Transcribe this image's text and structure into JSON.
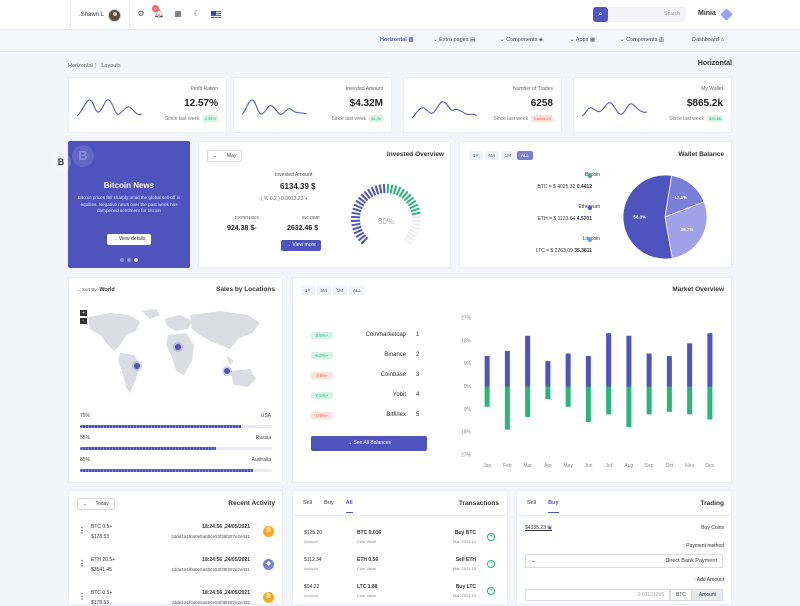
{
  "topbar": {
    "user": ".Shawn L",
    "notifications": "5",
    "search_placeholder": "Search",
    "brand": "Minia"
  },
  "nav": [
    "Horizontal",
    "Extra pages",
    "Components",
    "Apps",
    "Components",
    "Dashboard"
  ],
  "breadcrumb": {
    "parent": "Horizontal",
    "sep": "〉",
    "current": "Layouts"
  },
  "page_title": "Horizontal",
  "stats": [
    {
      "label": "Profit Ration",
      "value": "12.57%",
      "sub": "Since last week",
      "pill": "2.95%",
      "pill_color": "g"
    },
    {
      "label": "Invested Amount",
      "value": "$4.32M",
      "sub": "Since last week",
      "pill": "$1.2k",
      "pill_color": "g"
    },
    {
      "label": "Number of Trades",
      "value": "6258",
      "sub": "Since last week",
      "pill": "Trades 29",
      "pill_color": "r"
    },
    {
      "label": "My Wallet",
      "value": "$865.2k",
      "sub": "Since last week",
      "pill": "$35.8k",
      "pill_color": "g"
    }
  ],
  "btc_news": {
    "bg_letter": "B",
    "icon": "B",
    "title": "Bitcoin News",
    "body": "Bitcoin prices fell sharply amid the global sell-off in equities. Negative news over the past week has dampened sentiment for bitcoin",
    "button": "View details"
  },
  "invested": {
    "title": "Invested Overview",
    "month": "May",
    "label": "Invested Amount",
    "value": "6134.39 $",
    "change": "( % 0.2 ) 0.0012.23 +",
    "expenses_label": "EXPENSES",
    "expenses": "924.38 $-",
    "income_label": "INCOME",
    "income": "2632.46 $",
    "button": "View more",
    "gauge": "80%",
    "gauge_value": 0.8
  },
  "wallet": {
    "title": "Wallet Balance",
    "tabs": [
      "1Y",
      "6M",
      "1M",
      "ALL"
    ],
    "coins": [
      {
        "name": "Bitcoin",
        "line": "BTC = $ 4025.32 ",
        "amount": "0.4412",
        "color": "#2ab57d"
      },
      {
        "name": "Ethereum",
        "line": "ETH = $ 1123.64 ",
        "amount": "4.5701",
        "color": "#4e53bd"
      },
      {
        "name": "Litecoin",
        "line": "LTC = $ 2263.09 ",
        "amount": "35.3811",
        "color": "#4ba6ef"
      }
    ],
    "pie": [
      {
        "label": "17.5%",
        "value": 17.5,
        "color": "#7a7fd8"
      },
      {
        "label": "29.7%",
        "value": 29.7,
        "color": "#9ea2e6"
      },
      {
        "label": "58.3%",
        "value": 58.3,
        "color": "#4e53bd"
      }
    ]
  },
  "sales": {
    "title": "Sales by Locations",
    "sort_label": "Sort By:",
    "sort_value": "World",
    "rows": [
      {
        "pct": "75%",
        "country": "USA",
        "value": 75
      },
      {
        "pct": "55%",
        "country": "Russia",
        "value": 55
      },
      {
        "pct": "85%",
        "country": "Australia",
        "value": 85
      }
    ]
  },
  "market": {
    "title": "Market Overview",
    "tabs": [
      "1Y",
      "6M",
      "1M",
      "ALL"
    ],
    "button": "See All Balances",
    "list": [
      {
        "pill": "2.5%+",
        "color": "g",
        "name": "Coinmarketcap",
        "rank": "1"
      },
      {
        "pill": "8.3%+",
        "color": "g",
        "name": "Binance",
        "rank": "2"
      },
      {
        "pill": "3.6%-",
        "color": "r",
        "name": "Coinbase",
        "rank": "3"
      },
      {
        "pill": "7.5%+",
        "color": "g",
        "name": "Yobit",
        "rank": "4"
      },
      {
        "pill": "0.9%-",
        "color": "r",
        "name": "Bitfinex",
        "rank": "5"
      }
    ]
  },
  "chart_data": {
    "type": "bar",
    "stacked": true,
    "categories": [
      "Jan",
      "Feb",
      "Mar",
      "Apr",
      "May",
      "Jun",
      "Jul",
      "Aug",
      "Sep",
      "Oct",
      "Nov",
      "Dec"
    ],
    "yticks": [
      "27%",
      "18%",
      "9%",
      "0%",
      "9%",
      "18%",
      "27%"
    ],
    "ylim": [
      -27,
      27
    ],
    "series": [
      {
        "values": [
          12,
          14,
          20,
          10,
          13,
          12,
          21,
          20,
          13,
          12,
          17,
          21
        ],
        "color": "#4e53bd"
      },
      {
        "values": [
          -8,
          -17,
          -12,
          -5,
          -8,
          -14,
          -11,
          -16,
          -11,
          -10,
          -11,
          -13
        ],
        "color": "#2ab57d"
      }
    ]
  },
  "activity": {
    "title": "Recent Activity",
    "filter": "Today",
    "rows": [
      {
        "coin": "BTC 0.5+",
        "usd": "$178.53",
        "time": "18:24:56 ,24/05/2021",
        "hash": "2dda1a1f0a0e5a6bce53f38f287e2e431",
        "icon": "B",
        "color": "#f6a929"
      },
      {
        "coin": "ETH 20.5+",
        "usd": "$3541.45",
        "time": "18:24:56 ,24/05/2021",
        "hash": "2dda1a1f0a0e5a6bce53f38f287e2e431",
        "icon": "◆",
        "color": "#7a7fd8"
      },
      {
        "coin": "BTC 0.5+",
        "usd": "$178.53",
        "time": "18:24:56 ,24/05/2021",
        "hash": "2dda1a1f0a0e5a6bce53f38f287e2e431",
        "icon": "B",
        "color": "#f6a929"
      }
    ]
  },
  "transactions": {
    "title": "Transactions",
    "tabs": [
      "Sell",
      "Buy",
      "All"
    ],
    "rows": [
      {
        "amount": "$125.20",
        "amount_label": "Amount",
        "coin": "BTC 0.016",
        "coin_label": "Coin Value",
        "action": "Buy BTC",
        "date": "Mai, 2021 14"
      },
      {
        "amount": "$112.34",
        "amount_label": "Amount",
        "coin": "ETH 0.56",
        "coin_label": "Coin Value",
        "action": "Sell ETH",
        "date": "Mai, 2021 15"
      },
      {
        "amount": "$94.22",
        "amount_label": "Amount",
        "coin": "LTC 1.88",
        "coin_label": "Coin Value",
        "action": "Buy LTC",
        "date": "Mai, 2021 16"
      }
    ]
  },
  "trading": {
    "title": "Trading",
    "tabs": [
      "Sell",
      "Buy"
    ],
    "balance": "$4335.23",
    "coins_label": "Buy Coins",
    "payment_label": ": Payment method",
    "payment": "Direct Bank Payment",
    "add_label": ": Add Amount",
    "amount_placeholder": "0.00121255",
    "currency": "BTC",
    "amount_btn": "Amount"
  }
}
